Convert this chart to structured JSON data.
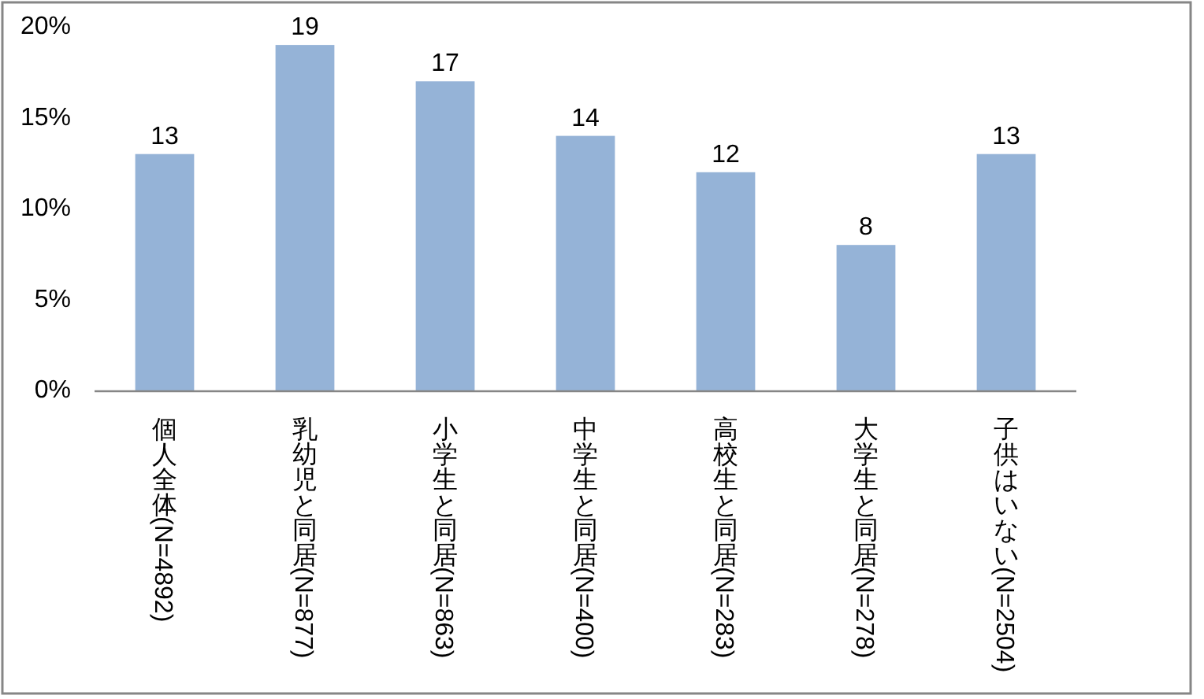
{
  "chart_data": {
    "type": "bar",
    "categories": [
      "個人全体(N=4892)",
      "乳幼児と同居(N=877)",
      "小学生と同居(N=863)",
      "中学生と同居(N=400)",
      "高校生と同居(N=283)",
      "大学生と同居(N=278)",
      "子供はいない(N=2504)"
    ],
    "values": [
      13,
      19,
      17,
      14,
      12,
      8,
      13
    ],
    "color": "#95b3d7",
    "data_labels": true,
    "ylim": [
      0,
      20
    ],
    "yticks": [
      {
        "value": 0,
        "label": "0%"
      },
      {
        "value": 5,
        "label": "5%"
      },
      {
        "value": 10,
        "label": "10%"
      },
      {
        "value": 15,
        "label": "15%"
      },
      {
        "value": 20,
        "label": "20%"
      }
    ]
  }
}
